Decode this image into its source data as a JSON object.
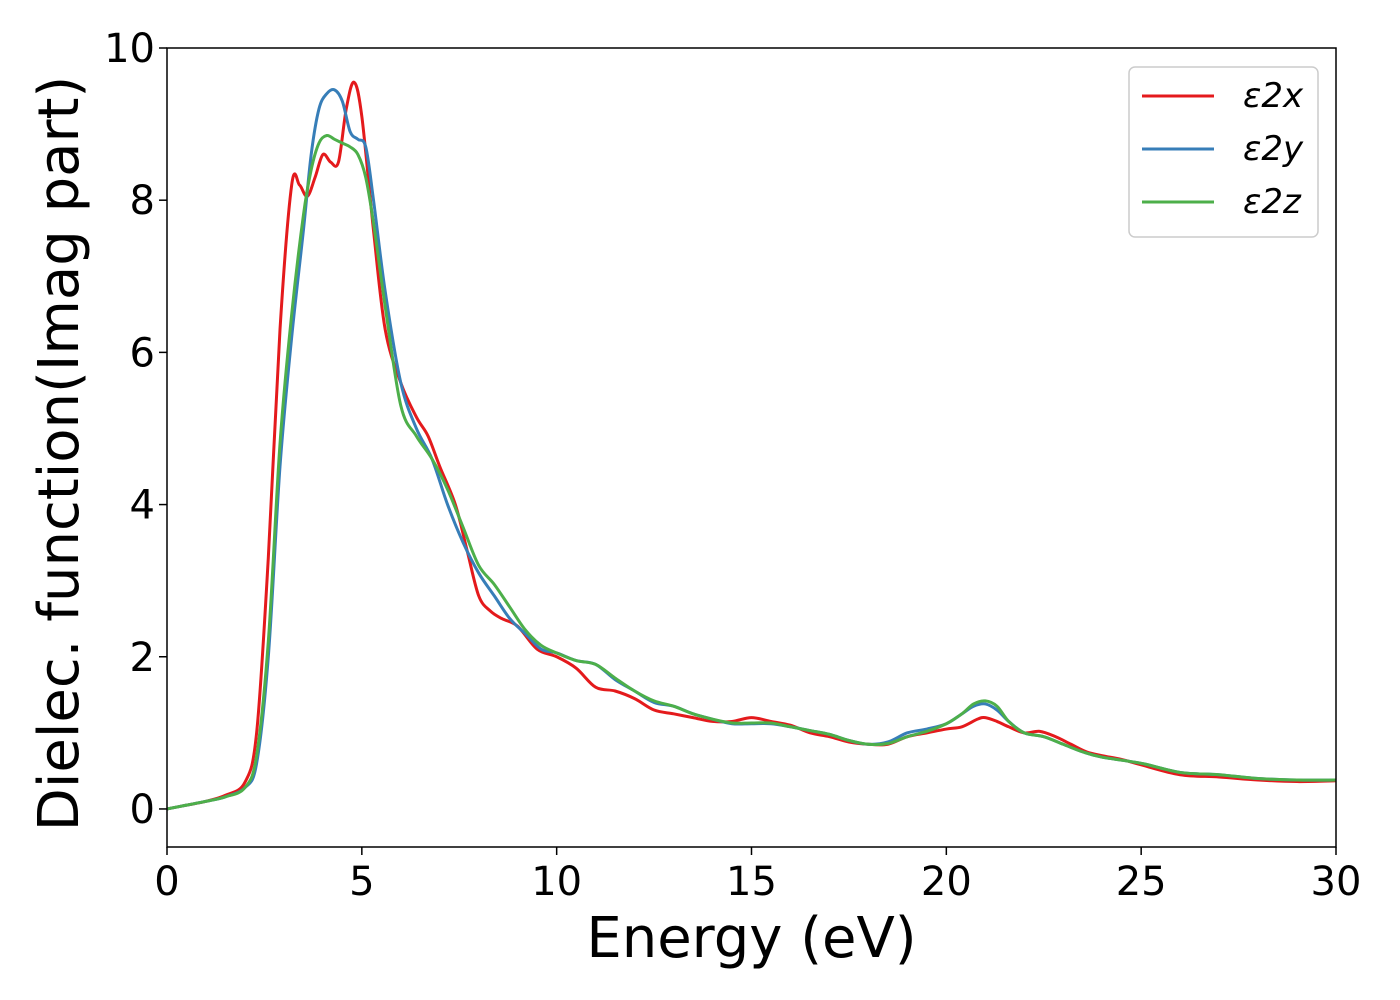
{
  "chart_data": {
    "type": "line",
    "title": "",
    "xlabel": "Energy (eV)",
    "ylabel": "Dielec. function(Imag part)",
    "xlim": [
      0,
      30
    ],
    "ylim": [
      -0.5,
      10
    ],
    "xticks": [
      0,
      5,
      10,
      15,
      20,
      25,
      30
    ],
    "yticks": [
      0,
      2,
      4,
      6,
      8,
      10
    ],
    "xtick_labels": [
      "0",
      "5",
      "10",
      "15",
      "20",
      "25",
      "30"
    ],
    "ytick_labels": [
      "0",
      "2",
      "4",
      "6",
      "8",
      "10"
    ],
    "grid": false,
    "legend_position": "top-right",
    "series": [
      {
        "name": "ε2x",
        "color": "#e41a1c",
        "x": [
          0,
          0.5,
          1,
          1.5,
          2,
          2.3,
          2.6,
          2.9,
          3.2,
          3.4,
          3.6,
          3.8,
          4.0,
          4.2,
          4.4,
          4.6,
          4.8,
          5.0,
          5.3,
          5.6,
          6.0,
          6.4,
          6.7,
          7.0,
          7.4,
          7.7,
          8.0,
          8.3,
          8.6,
          9.0,
          9.5,
          10.0,
          10.5,
          11.0,
          11.5,
          12.0,
          12.5,
          13.0,
          13.5,
          14.0,
          14.5,
          15.0,
          15.5,
          16.0,
          16.5,
          17.0,
          17.5,
          18.0,
          18.5,
          19.0,
          19.5,
          20.0,
          20.4,
          20.8,
          21.0,
          21.3,
          21.6,
          22.0,
          22.4,
          22.8,
          23.2,
          23.6,
          24.0,
          24.5,
          25.0,
          26.0,
          27.0,
          28.0,
          29.0,
          30.0
        ],
        "y": [
          0,
          0.05,
          0.1,
          0.18,
          0.35,
          1.0,
          3.3,
          6.3,
          8.2,
          8.2,
          8.05,
          8.3,
          8.6,
          8.5,
          8.5,
          9.2,
          9.55,
          9.1,
          7.6,
          6.3,
          5.6,
          5.15,
          4.9,
          4.5,
          4.0,
          3.4,
          2.8,
          2.6,
          2.5,
          2.4,
          2.1,
          2.0,
          1.85,
          1.6,
          1.55,
          1.45,
          1.3,
          1.25,
          1.2,
          1.15,
          1.15,
          1.2,
          1.15,
          1.1,
          1.0,
          0.95,
          0.88,
          0.85,
          0.85,
          0.95,
          1.0,
          1.05,
          1.08,
          1.18,
          1.2,
          1.15,
          1.08,
          1.0,
          1.02,
          0.95,
          0.85,
          0.75,
          0.7,
          0.65,
          0.58,
          0.45,
          0.42,
          0.38,
          0.36,
          0.37
        ]
      },
      {
        "name": "ε2y",
        "color": "#377eb8",
        "x": [
          0,
          0.5,
          1,
          1.5,
          2,
          2.3,
          2.6,
          2.9,
          3.2,
          3.5,
          3.7,
          3.9,
          4.1,
          4.3,
          4.5,
          4.7,
          4.9,
          5.1,
          5.3,
          5.6,
          6.0,
          6.4,
          6.8,
          7.2,
          7.6,
          8.0,
          8.4,
          8.8,
          9.2,
          9.6,
          10.0,
          10.5,
          11.0,
          11.5,
          12.0,
          12.5,
          13.0,
          13.5,
          14.0,
          14.5,
          15.0,
          15.5,
          16.0,
          16.5,
          17.0,
          17.5,
          18.0,
          18.5,
          19.0,
          19.5,
          20.0,
          20.4,
          20.7,
          21.0,
          21.3,
          21.6,
          22.0,
          22.5,
          23.0,
          23.5,
          24.0,
          25.0,
          26.0,
          27.0,
          28.0,
          29.0,
          30.0
        ],
        "y": [
          0,
          0.05,
          0.1,
          0.16,
          0.28,
          0.6,
          2.0,
          4.5,
          6.2,
          7.6,
          8.6,
          9.2,
          9.4,
          9.45,
          9.3,
          8.9,
          8.8,
          8.7,
          8.0,
          6.8,
          5.6,
          5.0,
          4.6,
          4.0,
          3.5,
          3.1,
          2.8,
          2.5,
          2.3,
          2.1,
          2.05,
          1.95,
          1.9,
          1.7,
          1.55,
          1.4,
          1.35,
          1.25,
          1.18,
          1.12,
          1.12,
          1.12,
          1.08,
          1.03,
          0.98,
          0.9,
          0.85,
          0.88,
          1.0,
          1.05,
          1.12,
          1.25,
          1.35,
          1.38,
          1.3,
          1.15,
          1.0,
          0.95,
          0.85,
          0.75,
          0.68,
          0.6,
          0.48,
          0.45,
          0.4,
          0.38,
          0.38
        ]
      },
      {
        "name": "ε2z",
        "color": "#4daf4a",
        "x": [
          0,
          0.5,
          1,
          1.5,
          2,
          2.3,
          2.6,
          2.9,
          3.2,
          3.5,
          3.7,
          3.9,
          4.1,
          4.3,
          4.5,
          4.7,
          4.9,
          5.1,
          5.3,
          5.6,
          6.0,
          6.4,
          6.8,
          7.2,
          7.6,
          8.0,
          8.4,
          8.8,
          9.2,
          9.6,
          10.0,
          10.5,
          11.0,
          11.5,
          12.0,
          12.5,
          13.0,
          13.5,
          14.0,
          14.5,
          15.0,
          15.5,
          16.0,
          16.5,
          17.0,
          17.5,
          18.0,
          18.5,
          19.0,
          19.5,
          20.0,
          20.4,
          20.7,
          21.0,
          21.3,
          21.6,
          22.0,
          22.5,
          23.0,
          23.5,
          24.0,
          25.0,
          26.0,
          27.0,
          28.0,
          29.0,
          30.0
        ],
        "y": [
          0,
          0.05,
          0.1,
          0.16,
          0.28,
          0.7,
          2.2,
          4.8,
          6.5,
          7.8,
          8.4,
          8.75,
          8.85,
          8.8,
          8.75,
          8.7,
          8.6,
          8.3,
          7.7,
          6.6,
          5.3,
          4.9,
          4.6,
          4.2,
          3.7,
          3.2,
          2.95,
          2.65,
          2.35,
          2.15,
          2.05,
          1.95,
          1.9,
          1.72,
          1.55,
          1.42,
          1.35,
          1.25,
          1.18,
          1.13,
          1.13,
          1.13,
          1.08,
          1.03,
          0.98,
          0.9,
          0.85,
          0.86,
          0.95,
          1.02,
          1.12,
          1.25,
          1.38,
          1.42,
          1.35,
          1.15,
          1.0,
          0.95,
          0.85,
          0.75,
          0.68,
          0.6,
          0.48,
          0.45,
          0.4,
          0.38,
          0.38
        ]
      }
    ]
  }
}
